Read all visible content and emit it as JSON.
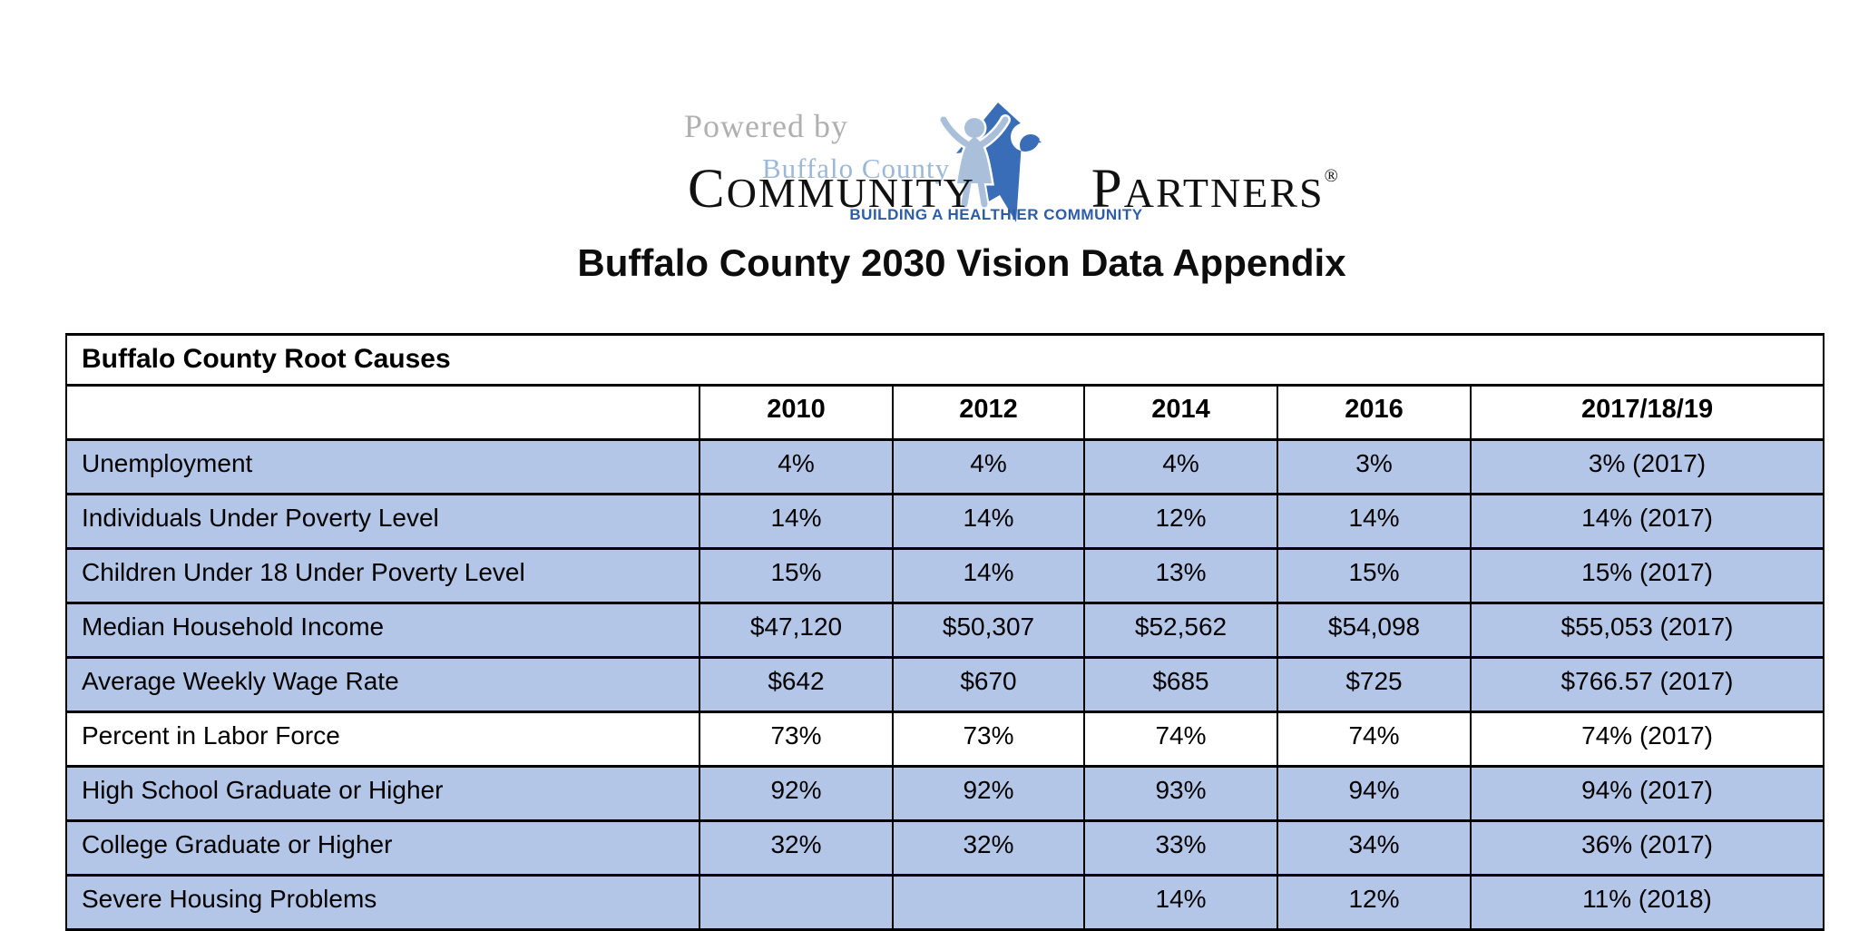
{
  "logo": {
    "powered_by": "Powered by",
    "buffalo_county": "Buffalo County",
    "community": "COMMUNITY",
    "partners": "PARTNERS",
    "registered_mark": "®",
    "tagline_prefix": "BUILDING A ",
    "tagline_emphasis": "HEALTHIER",
    "tagline_suffix": " COMMUNITY"
  },
  "page_title": "Buffalo County 2030 Vision Data Appendix",
  "table": {
    "title": "Buffalo County Root Causes",
    "columns": [
      "",
      "2010",
      "2012",
      "2014",
      "2016",
      "2017/18/19"
    ],
    "rows": [
      {
        "label": "Unemployment",
        "values": [
          "4%",
          "4%",
          "4%",
          "3%",
          "3% (2017)"
        ],
        "highlight": true
      },
      {
        "label": "Individuals Under Poverty Level",
        "values": [
          "14%",
          "14%",
          "12%",
          "14%",
          "14% (2017)"
        ],
        "highlight": true
      },
      {
        "label": "Children Under 18 Under Poverty Level",
        "values": [
          "15%",
          "14%",
          "13%",
          "15%",
          "15% (2017)"
        ],
        "highlight": true
      },
      {
        "label": "Median Household Income",
        "values": [
          "$47,120",
          "$50,307",
          "$52,562",
          "$54,098",
          "$55,053 (2017)"
        ],
        "highlight": true
      },
      {
        "label": "Average Weekly Wage Rate",
        "values": [
          "$642",
          "$670",
          "$685",
          "$725",
          "$766.57 (2017)"
        ],
        "highlight": true
      },
      {
        "label": "Percent in Labor Force",
        "values": [
          "73%",
          "73%",
          "74%",
          "74%",
          "74% (2017)"
        ],
        "highlight": false
      },
      {
        "label": "High School Graduate or Higher",
        "values": [
          "92%",
          "92%",
          "93%",
          "94%",
          "94% (2017)"
        ],
        "highlight": true
      },
      {
        "label": "College Graduate or Higher",
        "values": [
          "32%",
          "32%",
          "33%",
          "34%",
          "36% (2017)"
        ],
        "highlight": true
      },
      {
        "label": "Severe Housing Problems",
        "values": [
          "",
          "",
          "14%",
          "12%",
          "11% (2018)"
        ],
        "highlight": true
      }
    ]
  },
  "colors": {
    "row_highlight": "#b4c6e7",
    "table_border": "#000000",
    "logo_arrow_blue": "#3a6db8",
    "logo_figure_blue": "#a9bfda",
    "logo_buffalo_blue": "#9cb8d9",
    "logo_tagline_blue": "#2d5ca8",
    "powered_by_gray": "#b0b0b0"
  }
}
